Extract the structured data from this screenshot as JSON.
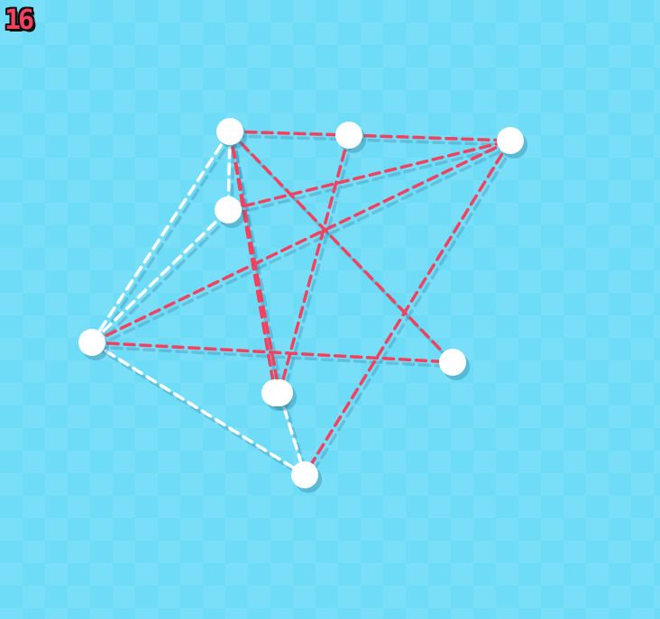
{
  "hud": {
    "level": "16"
  },
  "colors": {
    "background": "#6fdcf7",
    "crossing_edge": "#f2415f",
    "clear_edge": "#ffffff",
    "node": "#ffffff"
  },
  "puzzle": {
    "nodes": [
      {
        "id": "n1"
      },
      {
        "id": "n2"
      },
      {
        "id": "n3"
      },
      {
        "id": "n4"
      },
      {
        "id": "n5"
      },
      {
        "id": "n6"
      },
      {
        "id": "n7"
      },
      {
        "id": "n8"
      },
      {
        "id": "n9"
      }
    ],
    "edges": [
      {
        "from": "n1",
        "to": "n2",
        "state": "crossing"
      },
      {
        "from": "n2",
        "to": "n3",
        "state": "crossing"
      },
      {
        "from": "n1",
        "to": "n4",
        "state": "clear"
      },
      {
        "from": "n1",
        "to": "n5",
        "state": "clear"
      },
      {
        "from": "n1",
        "to": "n7",
        "state": "crossing"
      },
      {
        "from": "n1",
        "to": "n8",
        "state": "crossing"
      },
      {
        "from": "n1",
        "to": "n6",
        "state": "crossing"
      },
      {
        "from": "n4",
        "to": "n3",
        "state": "crossing"
      },
      {
        "from": "n5",
        "to": "n3",
        "state": "crossing"
      },
      {
        "from": "n2",
        "to": "n7",
        "state": "crossing"
      },
      {
        "from": "n3",
        "to": "n9",
        "state": "crossing"
      },
      {
        "from": "n5",
        "to": "n4",
        "state": "clear"
      },
      {
        "from": "n5",
        "to": "n6",
        "state": "crossing"
      },
      {
        "from": "n5",
        "to": "n9",
        "state": "clear"
      },
      {
        "from": "n7",
        "to": "n9",
        "state": "clear"
      }
    ]
  }
}
